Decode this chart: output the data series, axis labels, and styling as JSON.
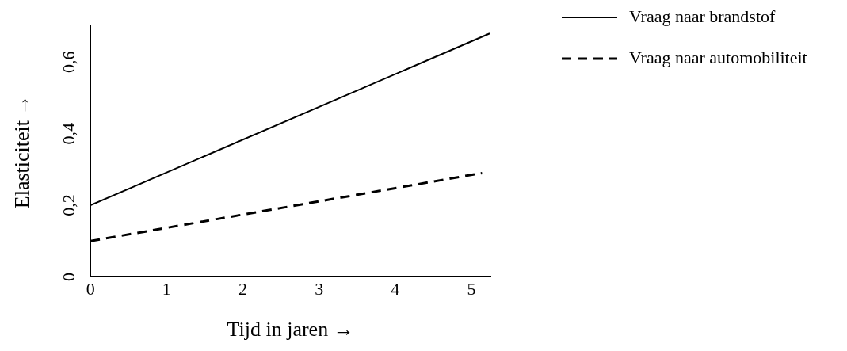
{
  "chart_data": {
    "type": "line",
    "xlabel": "Tijd in jaren →",
    "ylabel": "Elasticiteit →",
    "xlim": [
      0,
      5.25
    ],
    "xticks": [
      0,
      1,
      2,
      3,
      4,
      5
    ],
    "ylim": [
      0,
      0.7
    ],
    "yticks": [
      {
        "value": 0,
        "label": "0"
      },
      {
        "value": 0.2,
        "label": "0,2"
      },
      {
        "value": 0.4,
        "label": "0,4"
      },
      {
        "value": 0.6,
        "label": "0,6"
      }
    ],
    "grid": false,
    "legend": "top right",
    "marker": "none",
    "series": [
      {
        "name": "Vraag naar brandstof",
        "color": "#000000",
        "line_style": "solid",
        "x": [
          0,
          5.24
        ],
        "values": [
          0.2,
          0.68
        ]
      },
      {
        "name": "Vraag naar automobiliteit",
        "color": "#000000",
        "line_style": "dashed",
        "x": [
          0,
          5.14
        ],
        "values": [
          0.1,
          0.29
        ]
      }
    ]
  }
}
